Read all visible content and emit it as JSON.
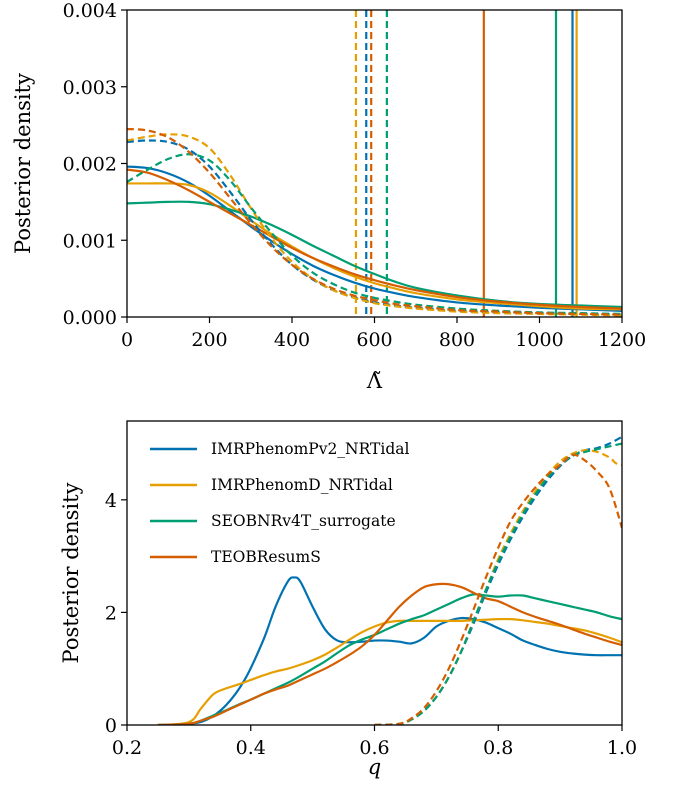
{
  "colors": {
    "IMRPhenomPv2_NRTidal": "#0072b2",
    "IMRPhenomD_NRTidal": "#e69f00",
    "SEOBNRv4T_surrogate": "#009e73",
    "TEOBResumS": "#d55e00"
  },
  "chart_data": [
    {
      "type": "line",
      "xlabel": "Λ̃",
      "ylabel": "Posterior density",
      "xlim": [
        0,
        1200
      ],
      "ylim": [
        0,
        0.004
      ],
      "xticks": [
        0,
        200,
        400,
        600,
        800,
        1000,
        1200
      ],
      "xtick_labels": [
        "0",
        "200",
        "400",
        "600",
        "800",
        "1000",
        "1200"
      ],
      "yticks": [
        0,
        0.001,
        0.002,
        0.003,
        0.004
      ],
      "ytick_labels": [
        "0.000",
        "0.001",
        "0.002",
        "0.003",
        "0.004"
      ],
      "series": [
        {
          "key": "IMRPhenomPv2_NRTidal",
          "style": "solid",
          "x": [
            0,
            50,
            100,
            150,
            200,
            250,
            300,
            350,
            400,
            450,
            500,
            550,
            600,
            650,
            700,
            800,
            900,
            1000,
            1100,
            1200
          ],
          "y": [
            0.00196,
            0.00194,
            0.00187,
            0.00175,
            0.00158,
            0.00138,
            0.00118,
            0.00099,
            0.00082,
            0.00067,
            0.00055,
            0.00045,
            0.00037,
            0.00031,
            0.00026,
            0.00019,
            0.00015,
            0.00012,
            0.0001,
            8e-05
          ]
        },
        {
          "key": "IMRPhenomD_NRTidal",
          "style": "solid",
          "x": [
            0,
            50,
            100,
            150,
            200,
            250,
            300,
            350,
            400,
            450,
            500,
            550,
            600,
            650,
            700,
            800,
            900,
            1000,
            1100,
            1200
          ],
          "y": [
            0.00174,
            0.00174,
            0.00174,
            0.00172,
            0.00162,
            0.00145,
            0.00126,
            0.00108,
            0.00092,
            0.00077,
            0.00064,
            0.00053,
            0.00044,
            0.00037,
            0.00031,
            0.00023,
            0.00018,
            0.00014,
            0.00011,
            0.0001
          ]
        },
        {
          "key": "SEOBNRv4T_surrogate",
          "style": "solid",
          "x": [
            0,
            50,
            100,
            150,
            200,
            250,
            300,
            350,
            400,
            450,
            500,
            550,
            600,
            650,
            700,
            800,
            900,
            1000,
            1100,
            1200
          ],
          "y": [
            0.00148,
            0.00149,
            0.0015,
            0.0015,
            0.00147,
            0.0014,
            0.00131,
            0.0012,
            0.00107,
            0.00093,
            0.0008,
            0.00067,
            0.00056,
            0.00046,
            0.00038,
            0.00028,
            0.00021,
            0.00017,
            0.00015,
            0.00013
          ]
        },
        {
          "key": "TEOBResumS",
          "style": "solid",
          "x": [
            0,
            50,
            100,
            150,
            200,
            250,
            300,
            350,
            400,
            450,
            500,
            550,
            600,
            650,
            700,
            800,
            900,
            1000,
            1100,
            1200
          ],
          "y": [
            0.00192,
            0.00188,
            0.00178,
            0.00165,
            0.0015,
            0.00135,
            0.0012,
            0.00105,
            0.0009,
            0.00077,
            0.00066,
            0.00056,
            0.00048,
            0.00041,
            0.00035,
            0.00026,
            0.0002,
            0.00016,
            0.00013,
            0.00011
          ]
        },
        {
          "key": "IMRPhenomPv2_NRTidal",
          "style": "dashed",
          "x": [
            0,
            50,
            100,
            150,
            200,
            250,
            300,
            350,
            400,
            450,
            500,
            550,
            600,
            650,
            700,
            800,
            900,
            1000,
            1100,
            1200
          ],
          "y": [
            0.00228,
            0.0023,
            0.00228,
            0.00218,
            0.00196,
            0.00163,
            0.00127,
            0.00095,
            0.00068,
            0.00049,
            0.00035,
            0.00026,
            0.00019,
            0.00015,
            0.00012,
            8e-05,
            6e-05,
            5e-05,
            4e-05,
            3e-05
          ]
        },
        {
          "key": "IMRPhenomD_NRTidal",
          "style": "dashed",
          "x": [
            0,
            50,
            100,
            150,
            200,
            250,
            300,
            350,
            400,
            450,
            500,
            550,
            600,
            650,
            700,
            800,
            900,
            1000,
            1100,
            1200
          ],
          "y": [
            0.0023,
            0.00235,
            0.00238,
            0.00235,
            0.0022,
            0.00185,
            0.00142,
            0.00103,
            0.00072,
            0.0005,
            0.00035,
            0.00025,
            0.00018,
            0.00014,
            0.00011,
            7e-05,
            5e-05,
            4e-05,
            3e-05,
            2e-05
          ]
        },
        {
          "key": "SEOBNRv4T_surrogate",
          "style": "dashed",
          "x": [
            0,
            50,
            100,
            150,
            200,
            250,
            300,
            350,
            400,
            450,
            500,
            550,
            600,
            650,
            700,
            800,
            900,
            1000,
            1100,
            1200
          ],
          "y": [
            0.00176,
            0.00192,
            0.00206,
            0.00212,
            0.00204,
            0.00178,
            0.00143,
            0.0011,
            0.0008,
            0.00058,
            0.00043,
            0.00032,
            0.00025,
            0.0002,
            0.00016,
            0.00011,
            8e-05,
            6e-05,
            5e-05,
            4e-05
          ]
        },
        {
          "key": "TEOBResumS",
          "style": "dashed",
          "x": [
            0,
            50,
            100,
            150,
            200,
            250,
            300,
            350,
            400,
            450,
            500,
            550,
            600,
            650,
            700,
            800,
            900,
            1000,
            1100,
            1200
          ],
          "y": [
            0.00245,
            0.00243,
            0.00234,
            0.00215,
            0.00188,
            0.00155,
            0.00122,
            0.00092,
            0.00068,
            0.0005,
            0.00037,
            0.00028,
            0.00022,
            0.00017,
            0.00014,
            9e-05,
            7e-05,
            5e-05,
            4e-05,
            3e-05
          ]
        }
      ],
      "vlines": [
        {
          "key": "IMRPhenomD_NRTidal",
          "x": 555,
          "style": "dashed"
        },
        {
          "key": "IMRPhenomPv2_NRTidal",
          "x": 580,
          "style": "dashed"
        },
        {
          "key": "TEOBResumS",
          "x": 592,
          "style": "dashed"
        },
        {
          "key": "SEOBNRv4T_surrogate",
          "x": 630,
          "style": "dashed"
        },
        {
          "key": "TEOBResumS",
          "x": 865,
          "style": "solid"
        },
        {
          "key": "SEOBNRv4T_surrogate",
          "x": 1040,
          "style": "solid"
        },
        {
          "key": "IMRPhenomPv2_NRTidal",
          "x": 1080,
          "style": "solid"
        },
        {
          "key": "IMRPhenomD_NRTidal",
          "x": 1090,
          "style": "solid"
        }
      ]
    },
    {
      "type": "line",
      "xlabel": "q",
      "ylabel": "Posterior density",
      "xlim": [
        0.2,
        1.0
      ],
      "ylim": [
        0,
        5.4
      ],
      "xticks": [
        0.2,
        0.4,
        0.6,
        0.8,
        1.0
      ],
      "xtick_labels": [
        "0.2",
        "0.4",
        "0.6",
        "0.8",
        "1.0"
      ],
      "yticks": [
        0,
        2,
        4
      ],
      "ytick_labels": [
        "0",
        "2",
        "4"
      ],
      "legend": {
        "placement": "upper-left",
        "entries": [
          {
            "key": "IMRPhenomPv2_NRTidal",
            "label": "IMRPhenomPv2_NRTidal"
          },
          {
            "key": "IMRPhenomD_NRTidal",
            "label": "IMRPhenomD_NRTidal"
          },
          {
            "key": "SEOBNRv4T_surrogate",
            "label": "SEOBNRv4T_surrogate"
          },
          {
            "key": "TEOBResumS",
            "label": "TEOBResumS"
          }
        ]
      },
      "series": [
        {
          "key": "IMRPhenomPv2_NRTidal",
          "style": "solid",
          "x": [
            0.25,
            0.3,
            0.33,
            0.36,
            0.39,
            0.42,
            0.44,
            0.46,
            0.47,
            0.48,
            0.5,
            0.52,
            0.54,
            0.56,
            0.58,
            0.6,
            0.62,
            0.64,
            0.66,
            0.68,
            0.7,
            0.72,
            0.74,
            0.76,
            0.78,
            0.8,
            0.82,
            0.84,
            0.86,
            0.88,
            0.9,
            0.92,
            0.94,
            0.96,
            0.98,
            1.0
          ],
          "y": [
            0,
            0.02,
            0.1,
            0.35,
            0.8,
            1.5,
            2.1,
            2.55,
            2.62,
            2.55,
            2.1,
            1.7,
            1.5,
            1.47,
            1.48,
            1.5,
            1.5,
            1.48,
            1.45,
            1.55,
            1.75,
            1.85,
            1.9,
            1.88,
            1.82,
            1.72,
            1.62,
            1.5,
            1.42,
            1.35,
            1.3,
            1.27,
            1.25,
            1.24,
            1.24,
            1.24
          ]
        },
        {
          "key": "IMRPhenomD_NRTidal",
          "style": "solid",
          "x": [
            0.25,
            0.3,
            0.32,
            0.34,
            0.36,
            0.38,
            0.4,
            0.42,
            0.44,
            0.46,
            0.48,
            0.5,
            0.52,
            0.54,
            0.56,
            0.58,
            0.6,
            0.62,
            0.64,
            0.66,
            0.68,
            0.7,
            0.72,
            0.74,
            0.76,
            0.78,
            0.8,
            0.82,
            0.84,
            0.86,
            0.88,
            0.9,
            0.92,
            0.94,
            0.96,
            0.98,
            1.0
          ],
          "y": [
            0,
            0.05,
            0.3,
            0.55,
            0.65,
            0.72,
            0.8,
            0.88,
            0.95,
            1.0,
            1.07,
            1.15,
            1.25,
            1.38,
            1.52,
            1.65,
            1.75,
            1.82,
            1.85,
            1.85,
            1.85,
            1.85,
            1.85,
            1.85,
            1.86,
            1.87,
            1.88,
            1.88,
            1.86,
            1.83,
            1.8,
            1.76,
            1.72,
            1.68,
            1.62,
            1.55,
            1.47
          ]
        },
        {
          "key": "SEOBNRv4T_surrogate",
          "style": "solid",
          "x": [
            0.25,
            0.3,
            0.32,
            0.34,
            0.36,
            0.38,
            0.4,
            0.42,
            0.44,
            0.46,
            0.48,
            0.5,
            0.52,
            0.54,
            0.56,
            0.58,
            0.6,
            0.62,
            0.64,
            0.66,
            0.68,
            0.7,
            0.72,
            0.74,
            0.76,
            0.78,
            0.8,
            0.82,
            0.84,
            0.86,
            0.88,
            0.9,
            0.92,
            0.94,
            0.96,
            0.98,
            1.0
          ],
          "y": [
            0,
            0.02,
            0.08,
            0.17,
            0.26,
            0.36,
            0.45,
            0.55,
            0.65,
            0.75,
            0.87,
            1.0,
            1.13,
            1.28,
            1.42,
            1.52,
            1.6,
            1.7,
            1.8,
            1.88,
            1.95,
            2.05,
            2.15,
            2.25,
            2.32,
            2.3,
            2.28,
            2.3,
            2.3,
            2.25,
            2.2,
            2.15,
            2.1,
            2.05,
            2.0,
            1.93,
            1.88
          ]
        },
        {
          "key": "TEOBResumS",
          "style": "solid",
          "x": [
            0.25,
            0.3,
            0.32,
            0.34,
            0.36,
            0.38,
            0.4,
            0.42,
            0.44,
            0.46,
            0.48,
            0.5,
            0.52,
            0.54,
            0.56,
            0.58,
            0.6,
            0.62,
            0.64,
            0.66,
            0.68,
            0.7,
            0.72,
            0.74,
            0.76,
            0.78,
            0.8,
            0.82,
            0.84,
            0.86,
            0.88,
            0.9,
            0.92,
            0.94,
            0.96,
            0.98,
            1.0
          ],
          "y": [
            0,
            0.02,
            0.08,
            0.15,
            0.25,
            0.35,
            0.45,
            0.55,
            0.63,
            0.7,
            0.8,
            0.9,
            1.0,
            1.12,
            1.25,
            1.4,
            1.6,
            1.85,
            2.1,
            2.3,
            2.45,
            2.5,
            2.5,
            2.45,
            2.35,
            2.25,
            2.2,
            2.1,
            2.0,
            1.92,
            1.85,
            1.78,
            1.7,
            1.62,
            1.55,
            1.48,
            1.42
          ]
        },
        {
          "key": "IMRPhenomPv2_NRTidal",
          "style": "dashed",
          "x": [
            0.6,
            0.64,
            0.66,
            0.68,
            0.7,
            0.72,
            0.74,
            0.76,
            0.78,
            0.8,
            0.82,
            0.84,
            0.86,
            0.88,
            0.9,
            0.92,
            0.94,
            0.96,
            0.98,
            1.0
          ],
          "y": [
            0,
            0.02,
            0.1,
            0.25,
            0.5,
            0.85,
            1.3,
            1.8,
            2.35,
            2.85,
            3.3,
            3.7,
            4.05,
            4.35,
            4.6,
            4.78,
            4.88,
            4.92,
            5.0,
            5.12
          ]
        },
        {
          "key": "IMRPhenomD_NRTidal",
          "style": "dashed",
          "x": [
            0.6,
            0.64,
            0.66,
            0.68,
            0.7,
            0.72,
            0.74,
            0.76,
            0.78,
            0.8,
            0.82,
            0.84,
            0.86,
            0.88,
            0.9,
            0.92,
            0.94,
            0.96,
            0.98,
            0.99,
            1.0
          ],
          "y": [
            0,
            0.02,
            0.1,
            0.25,
            0.5,
            0.85,
            1.3,
            1.85,
            2.4,
            2.95,
            3.4,
            3.8,
            4.15,
            4.45,
            4.68,
            4.82,
            4.88,
            4.85,
            4.75,
            4.65,
            4.62
          ]
        },
        {
          "key": "SEOBNRv4T_surrogate",
          "style": "dashed",
          "x": [
            0.6,
            0.64,
            0.66,
            0.68,
            0.7,
            0.72,
            0.74,
            0.76,
            0.78,
            0.8,
            0.82,
            0.84,
            0.86,
            0.88,
            0.9,
            0.92,
            0.94,
            0.96,
            0.98,
            1.0
          ],
          "y": [
            0,
            0.02,
            0.1,
            0.25,
            0.5,
            0.85,
            1.3,
            1.85,
            2.4,
            2.9,
            3.35,
            3.75,
            4.1,
            4.4,
            4.62,
            4.78,
            4.85,
            4.9,
            4.95,
            5.0
          ]
        },
        {
          "key": "TEOBResumS",
          "style": "dashed",
          "x": [
            0.6,
            0.64,
            0.66,
            0.68,
            0.7,
            0.72,
            0.74,
            0.76,
            0.78,
            0.8,
            0.82,
            0.84,
            0.86,
            0.88,
            0.9,
            0.92,
            0.94,
            0.96,
            0.98,
            1.0
          ],
          "y": [
            0,
            0.02,
            0.12,
            0.3,
            0.6,
            1.0,
            1.5,
            2.05,
            2.62,
            3.15,
            3.62,
            3.95,
            4.22,
            4.45,
            4.62,
            4.8,
            4.7,
            4.5,
            4.2,
            3.5
          ]
        }
      ]
    }
  ]
}
